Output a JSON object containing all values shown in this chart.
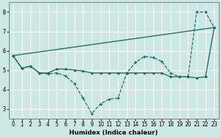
{
  "xlabel": "Humidex (Indice chaleur)",
  "background_color": "#cce8e4",
  "grid_color": "#ffffff",
  "line_color": "#1a6b5e",
  "xlim": [
    -0.5,
    23.5
  ],
  "ylim": [
    2.5,
    8.5
  ],
  "yticks": [
    3,
    4,
    5,
    6,
    7,
    8
  ],
  "xticks": [
    0,
    1,
    2,
    3,
    4,
    5,
    6,
    7,
    8,
    9,
    10,
    11,
    12,
    13,
    14,
    15,
    16,
    17,
    18,
    19,
    20,
    21,
    22,
    23
  ],
  "trend_x": [
    0,
    23
  ],
  "trend_y": [
    5.75,
    7.2
  ],
  "flat_x": [
    0,
    1,
    2,
    3,
    4,
    5,
    6,
    7,
    8,
    9,
    10,
    11,
    12,
    13,
    14,
    15,
    16,
    17,
    18,
    19,
    20,
    21,
    22,
    23
  ],
  "flat_y": [
    5.75,
    5.1,
    5.2,
    4.85,
    4.85,
    5.05,
    5.05,
    5.0,
    4.95,
    4.85,
    4.85,
    4.85,
    4.85,
    4.85,
    4.85,
    4.85,
    4.85,
    4.85,
    4.65,
    4.65,
    4.65,
    4.6,
    4.65,
    7.2
  ],
  "jagged_x": [
    0,
    1,
    2,
    3,
    4,
    5,
    6,
    7,
    8,
    9,
    10,
    11,
    12,
    13,
    14,
    15,
    16,
    17,
    18,
    19,
    20,
    21,
    22,
    23
  ],
  "jagged_y": [
    5.75,
    5.1,
    5.2,
    4.85,
    4.8,
    4.85,
    4.7,
    4.3,
    3.55,
    2.75,
    3.25,
    3.5,
    3.55,
    4.85,
    5.4,
    5.7,
    5.65,
    5.45,
    4.85,
    4.65,
    4.65,
    8.0,
    8.0,
    7.2
  ]
}
